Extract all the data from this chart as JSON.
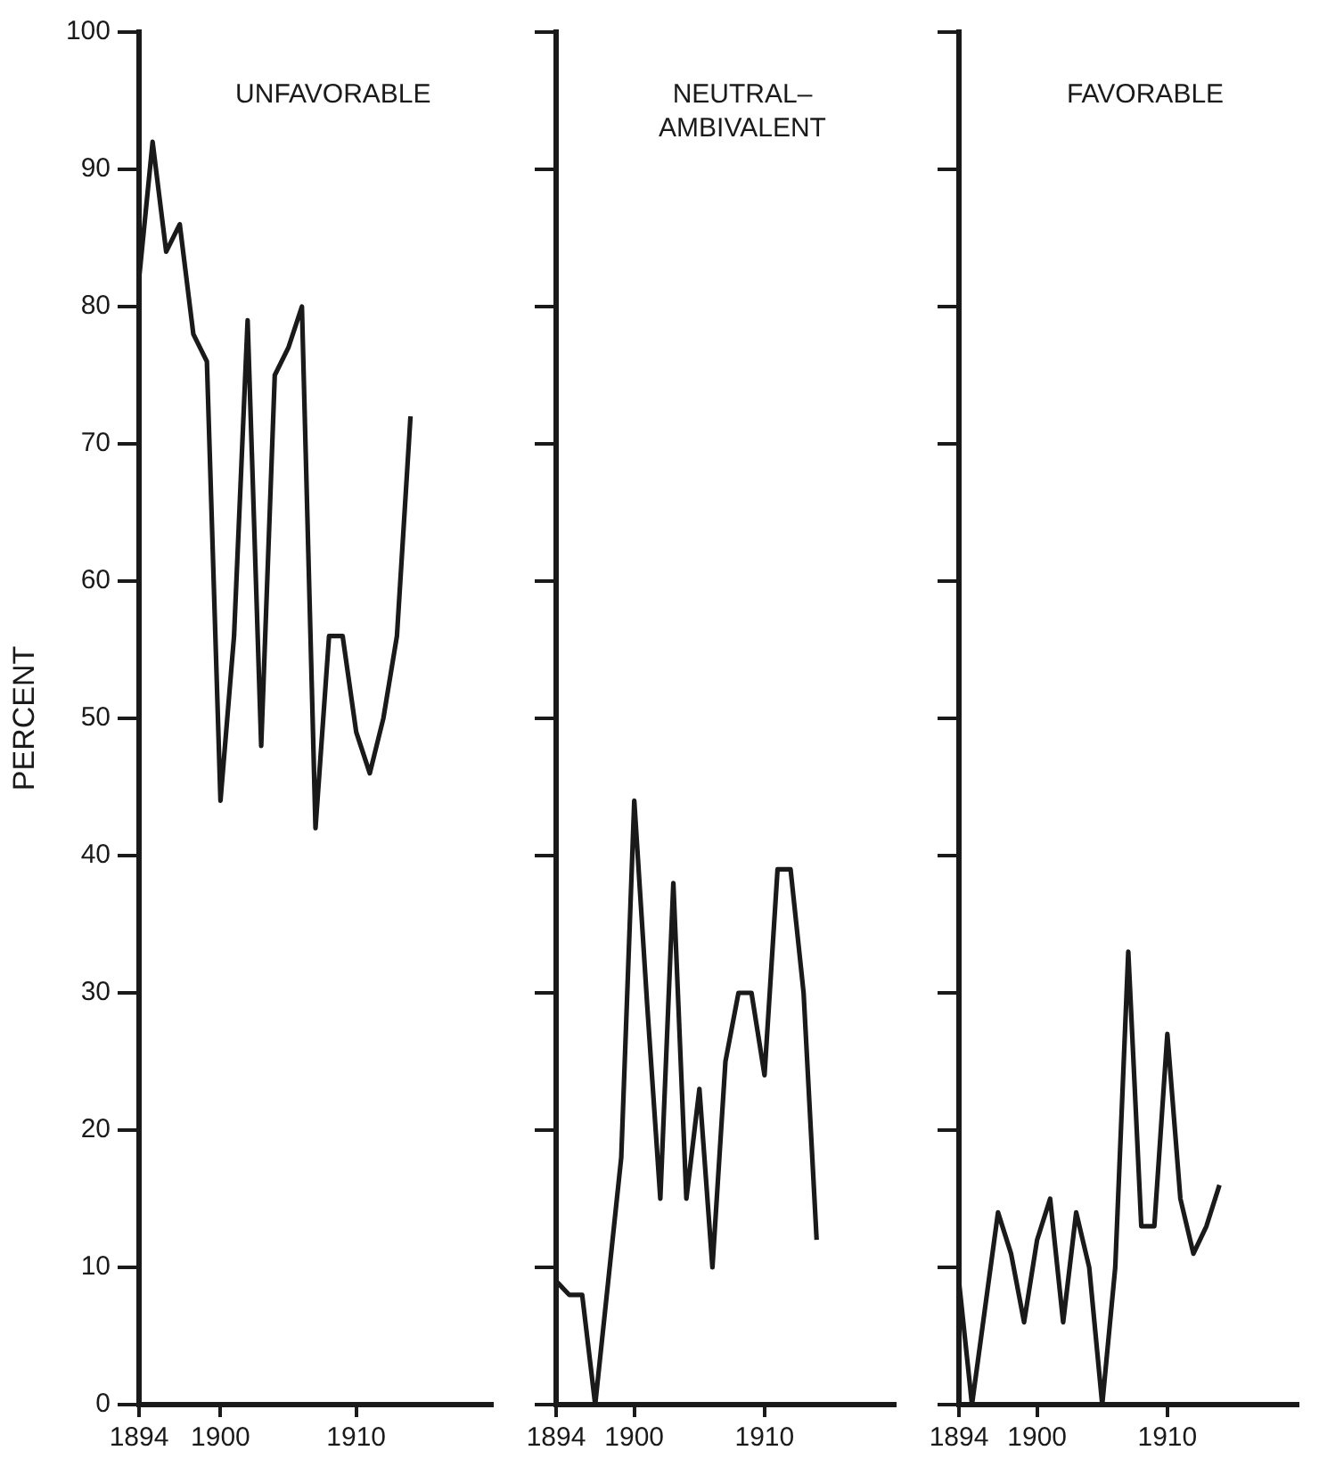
{
  "chart_data": [
    {
      "type": "line",
      "title": "UNFAVORABLE",
      "ylabel": "PERCENT",
      "color": "#1a1a1a",
      "marker": "none",
      "x": [
        1894,
        1895,
        1896,
        1897,
        1898,
        1899,
        1900,
        1901,
        1902,
        1903,
        1904,
        1905,
        1906,
        1907,
        1908,
        1909,
        1910,
        1911,
        1912,
        1913,
        1914
      ],
      "values": [
        82,
        92,
        84,
        86,
        78,
        76,
        44,
        56,
        79,
        48,
        75,
        77,
        80,
        42,
        56,
        56,
        49,
        46,
        50,
        56,
        72
      ],
      "xlim": [
        1894,
        1920
      ],
      "xticks": [
        1894,
        1900,
        1910
      ],
      "ylim": [
        0,
        100
      ],
      "yticks": [
        0,
        10,
        20,
        30,
        40,
        50,
        60,
        70,
        80,
        90,
        100
      ]
    },
    {
      "type": "line",
      "title": "NEUTRAL– AMBIVALENT",
      "color": "#1a1a1a",
      "marker": "none",
      "x": [
        1894,
        1895,
        1896,
        1897,
        1898,
        1899,
        1900,
        1901,
        1902,
        1903,
        1904,
        1905,
        1906,
        1907,
        1908,
        1909,
        1910,
        1911,
        1912,
        1913,
        1914
      ],
      "values": [
        9,
        8,
        8,
        0,
        9,
        18,
        44,
        29,
        15,
        38,
        15,
        23,
        10,
        25,
        30,
        30,
        24,
        39,
        39,
        30,
        12
      ],
      "xlim": [
        1894,
        1920
      ],
      "xticks": [
        1894,
        1900,
        1910
      ],
      "ylim": [
        0,
        100
      ],
      "yticks": [
        0,
        10,
        20,
        30,
        40,
        50,
        60,
        70,
        80,
        90,
        100
      ],
      "tick_labels": "x"
    },
    {
      "type": "line",
      "title": "FAVORABLE",
      "color": "#1a1a1a",
      "marker": "none",
      "x": [
        1894,
        1895,
        1896,
        1897,
        1898,
        1899,
        1900,
        1901,
        1902,
        1903,
        1904,
        1905,
        1906,
        1907,
        1908,
        1909,
        1910,
        1911,
        1912,
        1913,
        1914
      ],
      "values": [
        9,
        0,
        7,
        14,
        11,
        6,
        12,
        15,
        6,
        14,
        10,
        0,
        10,
        33,
        13,
        13,
        27,
        15,
        11,
        13,
        16
      ],
      "xlim": [
        1894,
        1920
      ],
      "xticks": [
        1894,
        1900,
        1910
      ],
      "ylim": [
        0,
        100
      ],
      "yticks": [
        0,
        10,
        20,
        30,
        40,
        50,
        60,
        70,
        80,
        90,
        100
      ],
      "tick_labels": "x"
    }
  ]
}
